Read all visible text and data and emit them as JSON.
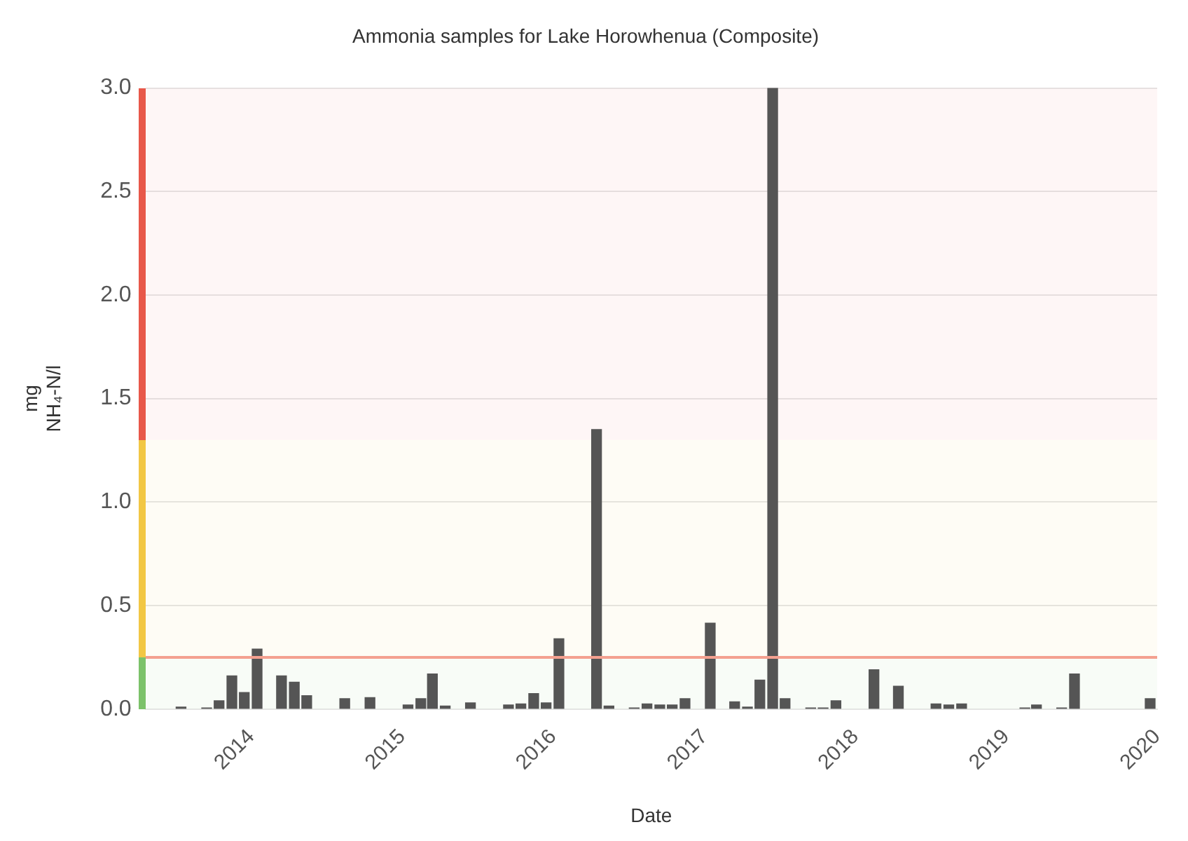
{
  "chart_data": {
    "type": "bar",
    "title": "Ammonia samples for Lake Horowhenua (Composite)",
    "xlabel": "Date",
    "ylabel": "mg NH₄-N/l",
    "x": [
      "2013-07-15",
      "2013-09-15",
      "2013-10-15",
      "2013-11-15",
      "2013-12-15",
      "2014-01-15",
      "2014-03-15",
      "2014-04-15",
      "2014-05-15",
      "2014-08-15",
      "2014-10-15",
      "2015-01-15",
      "2015-02-15",
      "2015-03-15",
      "2015-04-15",
      "2015-06-15",
      "2015-09-15",
      "2015-10-15",
      "2015-11-15",
      "2015-12-15",
      "2016-01-15",
      "2016-04-15",
      "2016-05-15",
      "2016-07-15",
      "2016-08-15",
      "2016-09-15",
      "2016-10-15",
      "2016-11-15",
      "2017-01-15",
      "2017-03-15",
      "2017-04-15",
      "2017-05-15",
      "2017-06-15",
      "2017-07-15",
      "2017-09-15",
      "2017-10-15",
      "2017-11-15",
      "2018-02-15",
      "2018-04-15",
      "2018-07-15",
      "2018-08-15",
      "2018-09-15",
      "2019-02-15",
      "2019-03-15",
      "2019-05-15",
      "2019-06-15",
      "2019-12-15"
    ],
    "values": [
      0.01,
      0.005,
      0.04,
      0.16,
      0.08,
      0.29,
      0.16,
      0.13,
      0.065,
      0.05,
      0.055,
      0.02,
      0.05,
      0.17,
      0.015,
      0.03,
      0.02,
      0.025,
      0.075,
      0.03,
      0.34,
      1.35,
      0.015,
      0.005,
      0.025,
      0.02,
      0.02,
      0.05,
      0.415,
      0.035,
      0.01,
      0.14,
      3.0,
      0.05,
      0.005,
      0.005,
      0.04,
      0.19,
      0.11,
      0.025,
      0.02,
      0.025,
      0.005,
      0.02,
      0.005,
      0.17,
      0.05
    ],
    "color": "#555555",
    "xlim": [
      "2013-04-20",
      "2020-01-01"
    ],
    "xticks": [
      "2014",
      "2015",
      "2016",
      "2017",
      "2018",
      "2019",
      "2020"
    ],
    "ylim": [
      0,
      3
    ],
    "yticks": [
      {
        "value": 0,
        "label": "0.0"
      },
      {
        "value": 0.5,
        "label": "0.5"
      },
      {
        "value": 1,
        "label": "1.0"
      },
      {
        "value": 1.5,
        "label": "1.5"
      },
      {
        "value": 2,
        "label": "2.0"
      },
      {
        "value": 2.5,
        "label": "2.5"
      },
      {
        "value": 3,
        "label": "3.0"
      }
    ],
    "grid": "y",
    "ref_lines": [
      {
        "axis": "y",
        "value": 0.25,
        "color": "#f4a090"
      }
    ],
    "bands": [
      {
        "axis": "y",
        "from": 0,
        "to": 0.25,
        "color": "#7cc26a"
      },
      {
        "axis": "y",
        "from": 0.25,
        "to": 1.3,
        "color": "#f2c744"
      },
      {
        "axis": "y",
        "from": 1.3,
        "to": 3,
        "color": "#e8584a"
      }
    ]
  }
}
